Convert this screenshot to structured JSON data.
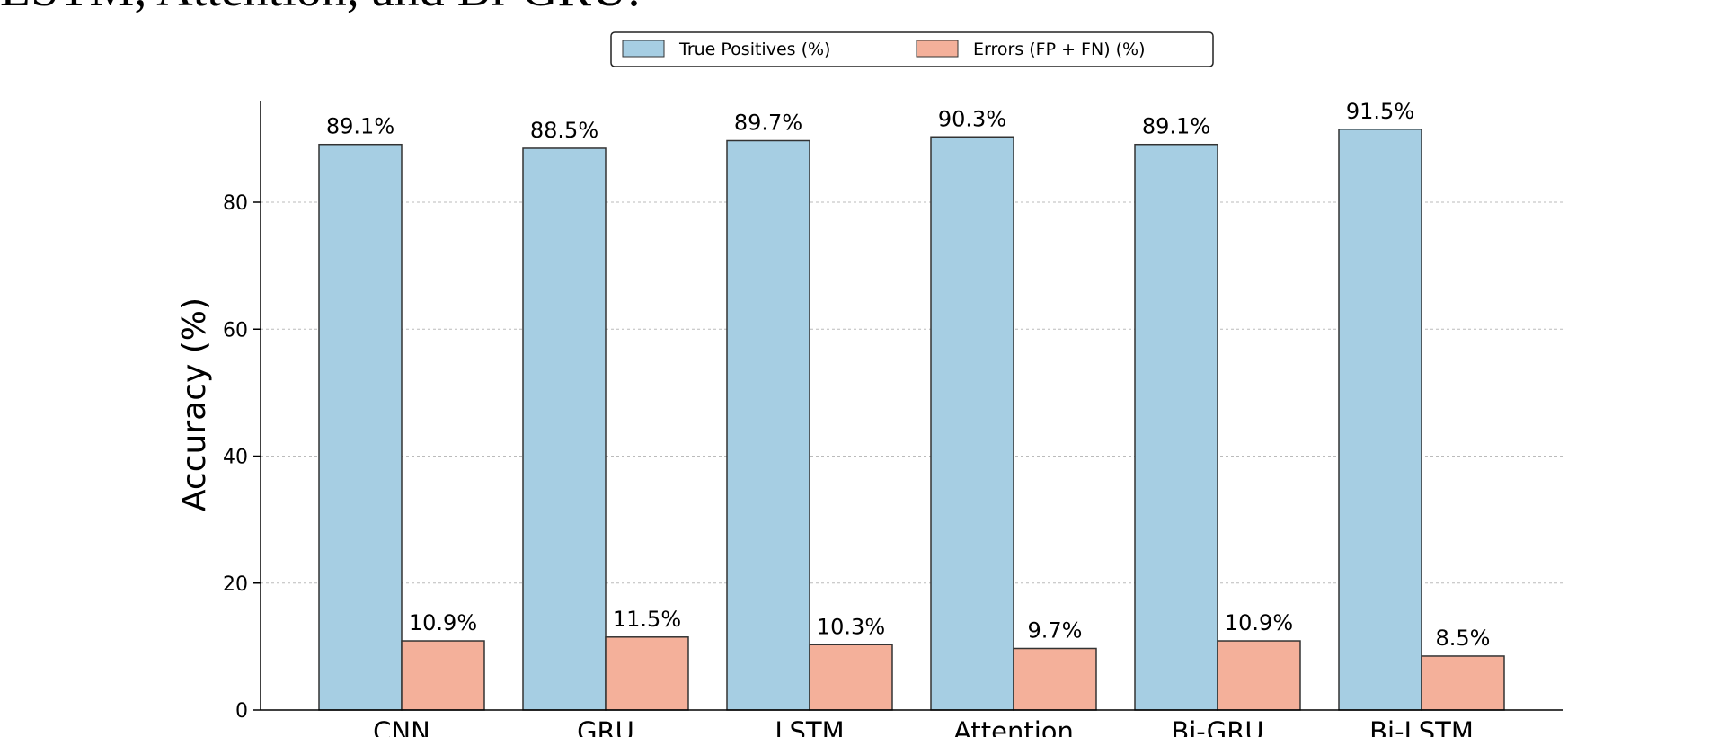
{
  "caption": "LSTM, Attention, and Bi-GRU.",
  "colors": {
    "series_1": "#a6cee3",
    "series_2": "#f4b09a",
    "edge": "#333333",
    "grid": "#bbbbbb"
  },
  "chart_data": {
    "type": "bar",
    "categories": [
      "CNN",
      "GRU",
      "LSTM",
      "Attention",
      "Bi-GRU",
      "Bi-LSTM"
    ],
    "series": [
      {
        "name": "True Positives (%)",
        "values": [
          89.1,
          88.5,
          89.7,
          90.3,
          89.1,
          91.5
        ],
        "labels": [
          "89.1%",
          "88.5%",
          "89.7%",
          "90.3%",
          "89.1%",
          "91.5%"
        ]
      },
      {
        "name": "Errors (FP + FN) (%)",
        "values": [
          10.9,
          11.5,
          10.3,
          9.7,
          10.9,
          8.5
        ],
        "labels": [
          "10.9%",
          "11.5%",
          "10.3%",
          "9.7%",
          "10.9%",
          "8.5%"
        ]
      }
    ],
    "title": "",
    "xlabel": "",
    "ylabel": "Accuracy (%)",
    "ylim": [
      0,
      96
    ],
    "yticks": [
      0,
      20,
      40,
      60,
      80
    ],
    "grid": "horizontal dashed",
    "legend_position": "top-center"
  }
}
